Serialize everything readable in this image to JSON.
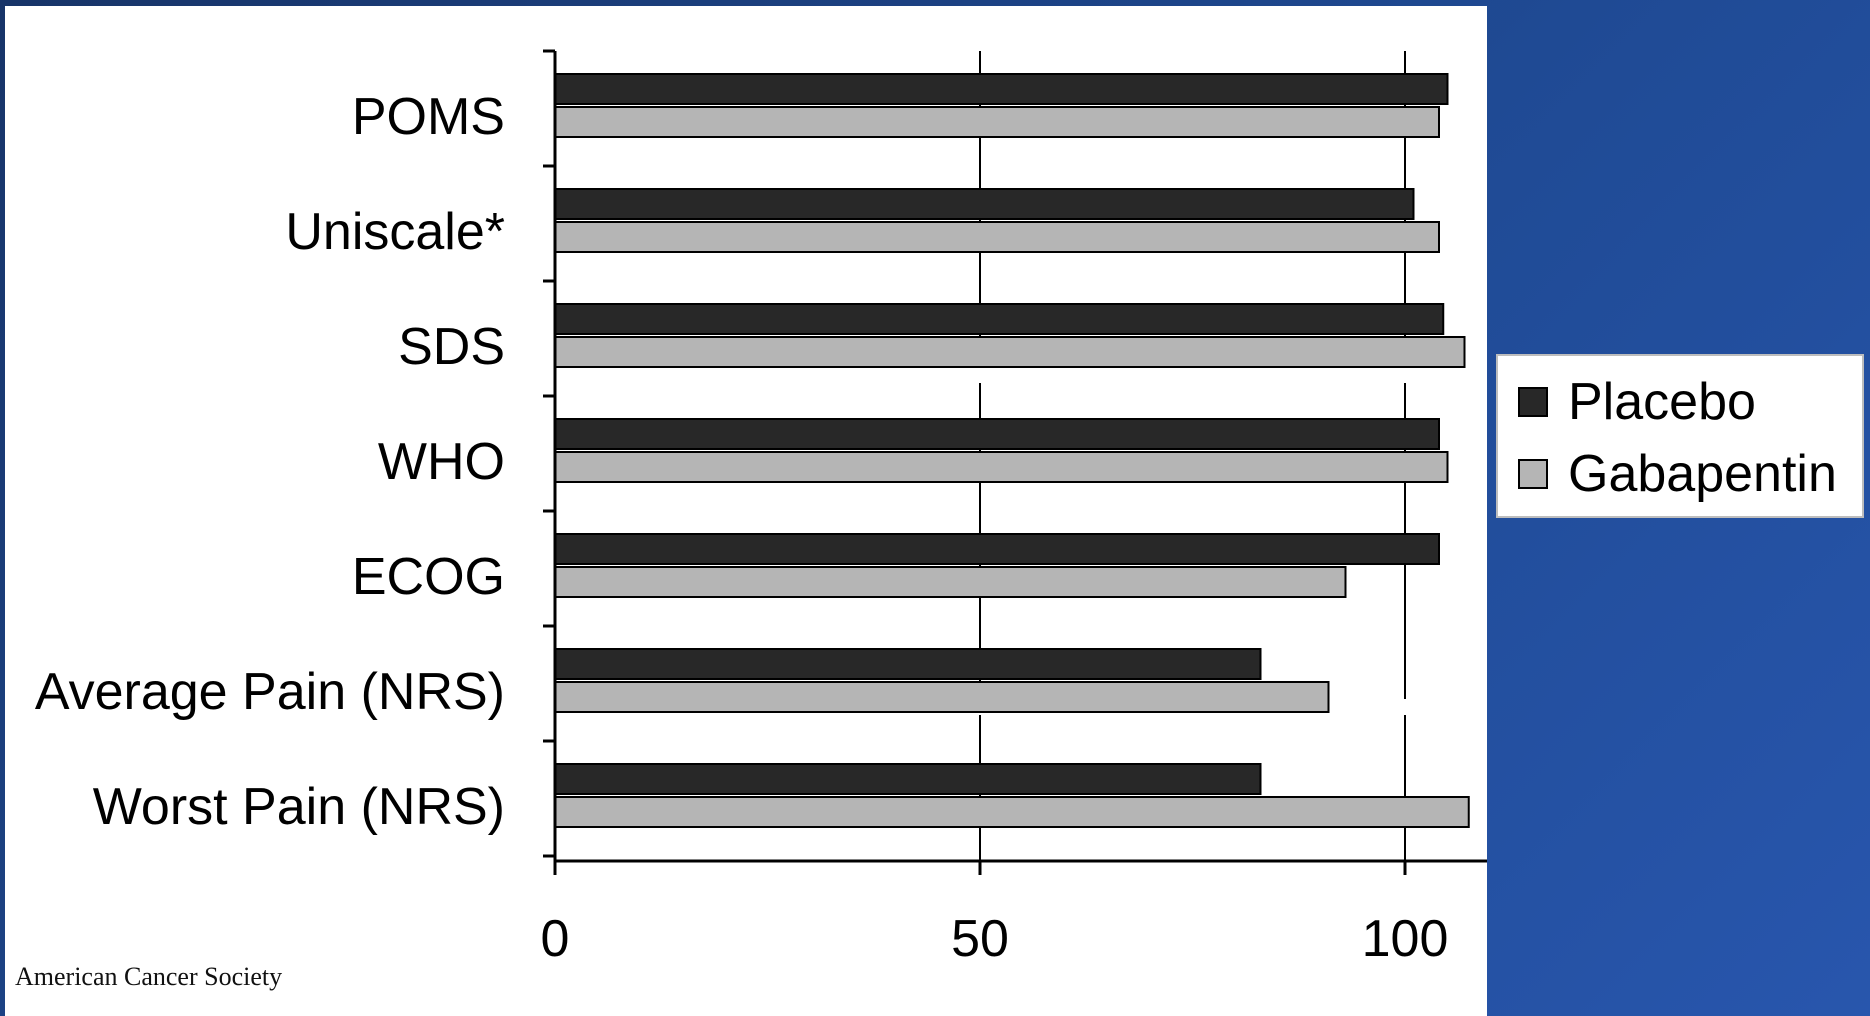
{
  "credit": "American Cancer Society",
  "colors": {
    "placebo": "#282828",
    "gabapentin": "#b5b5b5",
    "bar_outline": "#000000",
    "grid": "#000000"
  },
  "legend": {
    "items": [
      {
        "name": "Placebo",
        "color": "#282828"
      },
      {
        "name": "Gabapentin",
        "color": "#b5b5b5"
      }
    ],
    "placement": "right"
  },
  "chart_data": {
    "type": "bar",
    "orientation": "horizontal",
    "title": "",
    "xlabel": "",
    "ylabel": "",
    "xlim": [
      0,
      110
    ],
    "xticks": [
      0,
      50,
      100
    ],
    "grid": "vertical, dashed",
    "categories": [
      "POMS",
      "Uniscale*",
      "SDS",
      "WHO",
      "ECOG",
      "Average Pain (NRS)",
      "Worst Pain (NRS)"
    ],
    "series": [
      {
        "name": "Placebo",
        "values": [
          105,
          101,
          104.5,
          104,
          104,
          83,
          83
        ]
      },
      {
        "name": "Gabapentin",
        "values": [
          104,
          104,
          107,
          105,
          93,
          91,
          107.5
        ]
      }
    ]
  }
}
